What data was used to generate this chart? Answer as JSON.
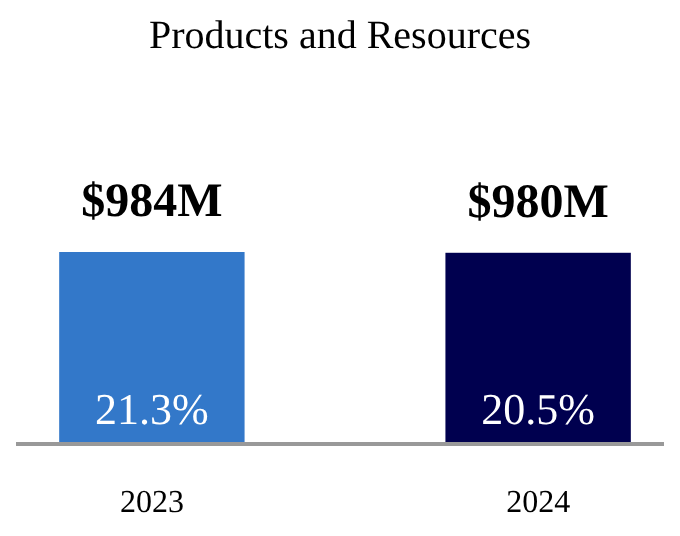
{
  "chart_data": {
    "type": "bar",
    "title": "Products and Resources",
    "categories": [
      "2023",
      "2024"
    ],
    "values": [
      984,
      980
    ],
    "colors": [
      "#3378c9",
      "#00004f"
    ],
    "value_labels": [
      "$984M",
      "$980M"
    ],
    "annotations": [
      "21.3%",
      "20.5%"
    ]
  }
}
